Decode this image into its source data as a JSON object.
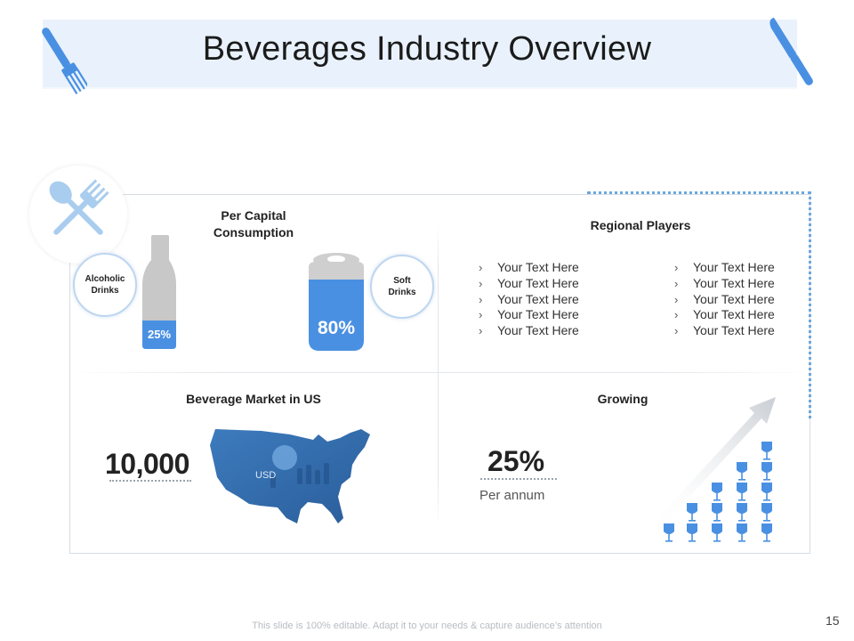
{
  "slide": {
    "title": "Beverages Industry Overview",
    "footer": "This slide is 100% editable. Adapt it to your needs & capture audience’s attention",
    "page_number": "15",
    "accent_color": "#4a90e2"
  },
  "per_capita": {
    "title_line1": "Per Capital",
    "title_line2": "Consumption",
    "alcoholic": {
      "line1": "Alcoholic",
      "line2": "Drinks",
      "value": "25%",
      "fill": 0.25
    },
    "soft": {
      "line1": "Soft",
      "line2": "Drinks",
      "value": "80%",
      "fill": 0.8
    }
  },
  "regional_players": {
    "title": "Regional Players",
    "bullet": "›",
    "left": [
      "Your Text Here",
      "Your Text Here",
      "Your Text Here",
      "Your Text Here",
      "Your Text Here"
    ],
    "right": [
      "Your Text Here",
      "Your Text Here",
      "Your Text Here",
      "Your Text Here",
      "Your Text Here"
    ]
  },
  "market_us": {
    "title": "Beverage Market in US",
    "value": "10,000",
    "unit": "USD"
  },
  "growing": {
    "title": "Growing",
    "value": "25%",
    "label": "Per annum",
    "glass_columns": [
      1,
      2,
      3,
      4,
      5
    ]
  },
  "icons": [
    "fork-icon",
    "knife-icon",
    "spoon-fork-icon",
    "bottle-icon",
    "can-icon",
    "us-map-icon",
    "wine-glass-icon",
    "growth-arrow-icon"
  ]
}
